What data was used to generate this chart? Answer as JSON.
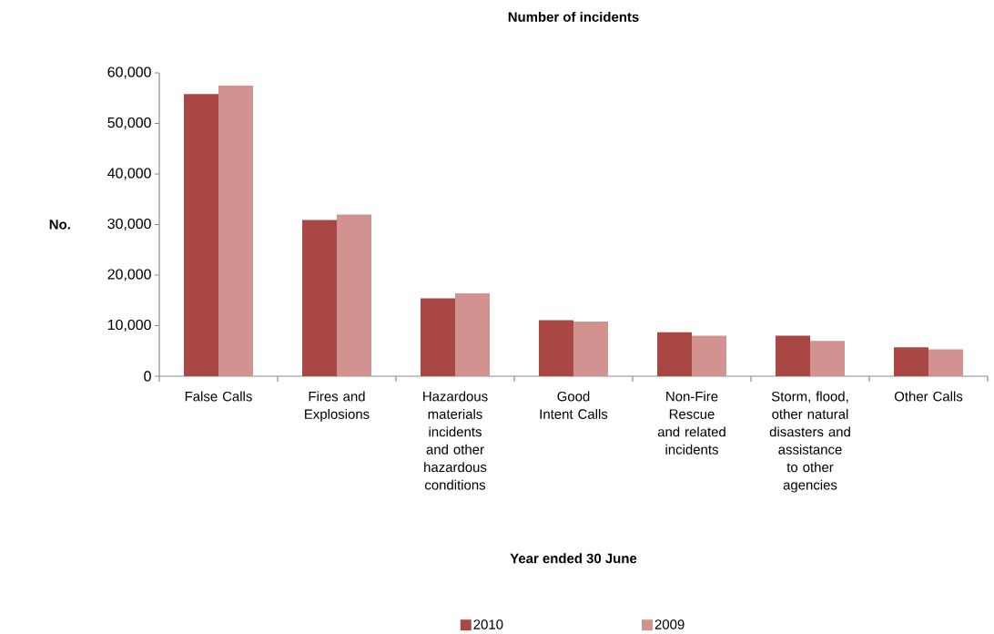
{
  "chart_data": {
    "type": "bar",
    "title": "Number of incidents",
    "xlabel": "Year ended 30 June",
    "ylabel": "No.",
    "categories": [
      "False Calls",
      "Fires and Explosions",
      "Hazardous materials incidents and other hazardous conditions",
      "Good Intent Calls",
      "Non-Fire Rescue and related incidents",
      "Storm, flood, other natural disasters and assistance to other agencies",
      "Other Calls"
    ],
    "series": [
      {
        "name": "2010",
        "color": "#a94744",
        "values": [
          55800,
          30900,
          15400,
          11100,
          8700,
          8000,
          5700
        ]
      },
      {
        "name": "2009",
        "color": "#d29290",
        "values": [
          57500,
          32000,
          16400,
          10800,
          8000,
          7000,
          5300
        ]
      }
    ],
    "ylim": [
      0,
      60000
    ],
    "yticks": [
      0,
      {
        "value": 10000,
        "label": "10,000"
      },
      {
        "value": 20000,
        "label": "20,000"
      },
      {
        "value": 30000,
        "label": "30,000"
      },
      {
        "value": 40000,
        "label": "40,000"
      },
      {
        "value": 50000,
        "label": "50,000"
      },
      {
        "value": 60000,
        "label": "60,000"
      }
    ],
    "grid": false,
    "legend": "bottom"
  }
}
